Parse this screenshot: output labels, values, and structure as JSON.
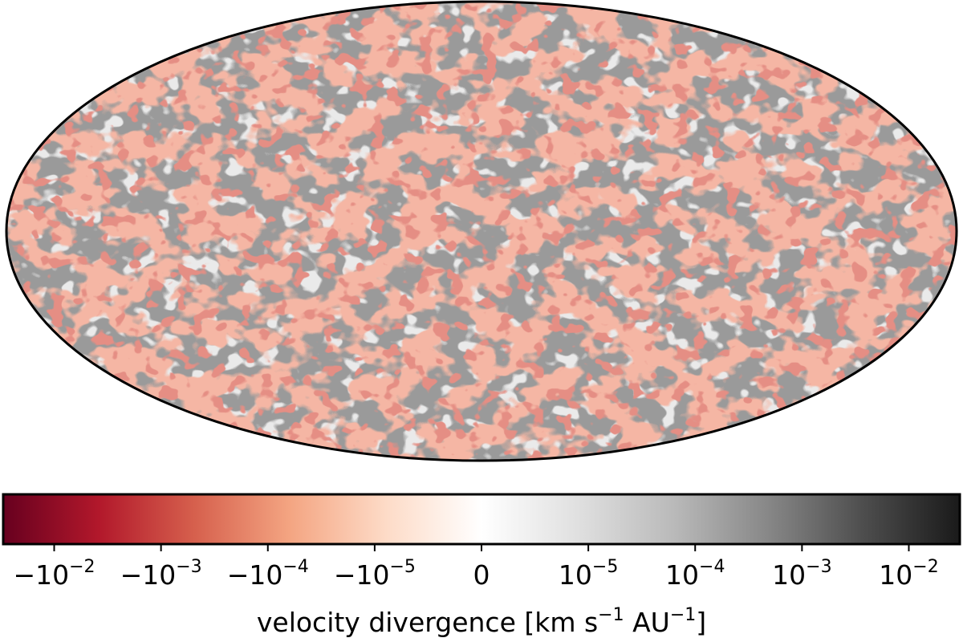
{
  "chart_data": {
    "type": "heatmap",
    "projection": "mollweide",
    "field": "velocity divergence",
    "colorbar": {
      "label_parts": [
        {
          "text": "velocity divergence [km s",
          "sup": false
        },
        {
          "text": "−1",
          "sup": true
        },
        {
          "text": " AU",
          "sup": false
        },
        {
          "text": "−1",
          "sup": true
        },
        {
          "text": "]",
          "sup": false
        }
      ],
      "scale": "symlog",
      "range": [
        -0.03,
        0.03
      ],
      "colormap_negative": [
        "#67001f",
        "#b2182b",
        "#d6604d",
        "#f4a582",
        "#fddbc7",
        "#ffffff"
      ],
      "colormap_positive": [
        "#ffffff",
        "#e0e0e0",
        "#bababa",
        "#878787",
        "#4d4d4d",
        "#1a1a1a"
      ],
      "ticks": [
        {
          "value": -0.01,
          "base": "−10",
          "exp": "−2"
        },
        {
          "value": -0.001,
          "base": "−10",
          "exp": "−3"
        },
        {
          "value": -0.0001,
          "base": "−10",
          "exp": "−4"
        },
        {
          "value": -1e-05,
          "base": "−10",
          "exp": "−5"
        },
        {
          "value": 0,
          "base": "0",
          "exp": ""
        },
        {
          "value": 1e-05,
          "base": "10",
          "exp": "−5"
        },
        {
          "value": 0.0001,
          "base": "10",
          "exp": "−4"
        },
        {
          "value": 0.001,
          "base": "10",
          "exp": "−3"
        },
        {
          "value": 0.01,
          "base": "10",
          "exp": "−2"
        }
      ]
    },
    "map_colors": {
      "negative": "#e8775f",
      "negative_strong": "#c4453a",
      "negative_light": "#f2a48c",
      "positive": "#9a9a9a",
      "positive_light": "#c9c9c9",
      "outline": "#000000"
    }
  }
}
